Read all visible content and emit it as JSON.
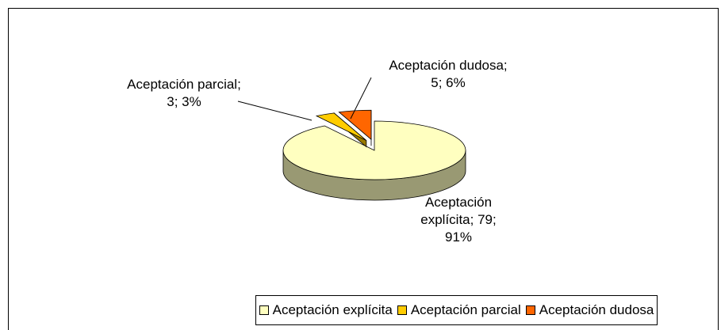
{
  "chart_data": {
    "type": "pie",
    "categories": [
      "Aceptación explícita",
      "Aceptación parcial",
      "Aceptación dudosa"
    ],
    "values": [
      79,
      3,
      5
    ],
    "value_labels": [
      "Aceptación explícita; 79; 91%",
      "Aceptación parcial; 3; 3%",
      "Aceptación dudosa; 5; 6%"
    ],
    "colors": [
      "#ffffc0",
      "#ffcc00",
      "#ff6600"
    ],
    "legend": "bottom"
  }
}
